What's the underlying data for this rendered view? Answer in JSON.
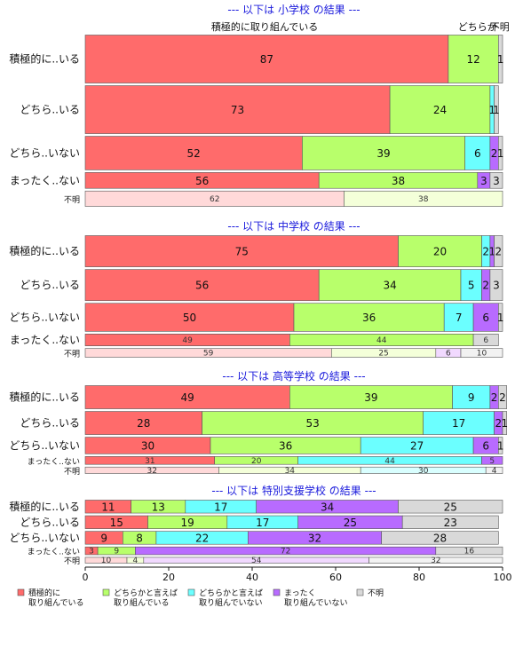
{
  "chart_data": {
    "type": "bar",
    "orientation": "horizontal",
    "stacked": true,
    "xlim": [
      0,
      100
    ],
    "x_ticks": [
      0,
      20,
      40,
      60,
      80,
      100
    ],
    "legend_position": "bottom",
    "legend": [
      {
        "name": "積極的に\n取り組んでいる",
        "color": "#ff6b6b"
      },
      {
        "name": "どちらかと言えば\n取り組んでいる",
        "color": "#b8ff6b"
      },
      {
        "name": "どちらかと言えば\n取り組んでいない",
        "color": "#6bffff"
      },
      {
        "name": "まったく\n取り組んでいない",
        "color": "#b86bff"
      },
      {
        "name": "不明",
        "color": "#d9d9d9"
      }
    ],
    "top_annotations": [
      {
        "text": "積極的に取り組んでいる",
        "x": 43
      },
      {
        "text": "どちらか",
        "x": 94
      },
      {
        "text": "不明",
        "x": 99.3
      }
    ],
    "panels": [
      {
        "title": "--- 以下は 小学校 の結果 ---",
        "rows": [
          {
            "label": "積極的に..いる",
            "values": [
              87,
              12,
              0,
              0,
              1
            ],
            "labels": [
              "87",
              "12",
              "",
              "",
              "1"
            ],
            "weight": 1.0
          },
          {
            "label": "どちら..いる",
            "values": [
              73,
              24,
              1,
              0,
              1
            ],
            "labels": [
              "73",
              "24",
              "1",
              "",
              "1"
            ],
            "weight": 1.0
          },
          {
            "label": "どちら..いない",
            "values": [
              52,
              39,
              6,
              2,
              1
            ],
            "labels": [
              "52",
              "39",
              "6",
              "2",
              "1"
            ],
            "weight": 0.7
          },
          {
            "label": "まったく..ない",
            "values": [
              56,
              38,
              0,
              3,
              3
            ],
            "labels": [
              "56",
              "38",
              "",
              "3",
              "3"
            ],
            "weight": 0.33
          },
          {
            "label": "不明",
            "values": [
              62,
              38,
              0,
              0,
              0
            ],
            "labels": [
              "62",
              "38",
              "",
              "",
              ""
            ],
            "weight": 0.32,
            "faded": true
          }
        ]
      },
      {
        "title": "--- 以下は 中学校 の結果 ---",
        "rows": [
          {
            "label": "積極的に..いる",
            "values": [
              75,
              20,
              2,
              1,
              2
            ],
            "labels": [
              "75",
              "20",
              "2",
              "1",
              "2"
            ],
            "weight": 1.0
          },
          {
            "label": "どちら..いる",
            "values": [
              56,
              34,
              5,
              2,
              3
            ],
            "labels": [
              "56",
              "34",
              "5",
              "2",
              "3"
            ],
            "weight": 1.0
          },
          {
            "label": "どちら..いない",
            "values": [
              50,
              36,
              7,
              6,
              1
            ],
            "labels": [
              "50",
              "36",
              "7",
              "6",
              "1"
            ],
            "weight": 0.9
          },
          {
            "label": "まったく..ない",
            "values": [
              49,
              44,
              0,
              0,
              6
            ],
            "labels": [
              "49",
              "44",
              "",
              "",
              "6"
            ],
            "weight": 0.38
          },
          {
            "label": "不明",
            "values": [
              59,
              25,
              0,
              6,
              10
            ],
            "labels": [
              "59",
              "25",
              "",
              "6",
              "10"
            ],
            "weight": 0.28,
            "faded": true
          }
        ]
      },
      {
        "title": "--- 以下は 高等学校 の結果 ---",
        "rows": [
          {
            "label": "積極的に..いる",
            "values": [
              49,
              39,
              9,
              2,
              2
            ],
            "labels": [
              "49",
              "39",
              "9",
              "2",
              "2"
            ],
            "weight": 1.0
          },
          {
            "label": "どちら..いる",
            "values": [
              28,
              53,
              17,
              2,
              1
            ],
            "labels": [
              "28",
              "53",
              "17",
              "2",
              "1"
            ],
            "weight": 1.0
          },
          {
            "label": "どちら..いない",
            "values": [
              30,
              36,
              27,
              6,
              1
            ],
            "labels": [
              "30",
              "36",
              "27",
              "6",
              "1"
            ],
            "weight": 0.72
          },
          {
            "label": "まったく..ない",
            "values": [
              31,
              20,
              44,
              5,
              0
            ],
            "labels": [
              "31",
              "20",
              "44",
              "5",
              ""
            ],
            "weight": 0.34,
            "small": true
          },
          {
            "label": "不明",
            "values": [
              32,
              34,
              30,
              0,
              4
            ],
            "labels": [
              "32",
              "34",
              "30",
              "",
              "4"
            ],
            "weight": 0.28,
            "faded": true
          }
        ]
      },
      {
        "title": "--- 以下は 特別支援学校 の結果 ---",
        "rows": [
          {
            "label": "積極的に..いる",
            "values": [
              11,
              13,
              17,
              34,
              25
            ],
            "labels": [
              "11",
              "13",
              "17",
              "34",
              "25"
            ],
            "weight": 1.0
          },
          {
            "label": "どちら..いる",
            "values": [
              15,
              19,
              17,
              25,
              23
            ],
            "labels": [
              "15",
              "19",
              "17",
              "25",
              "23"
            ],
            "weight": 1.0
          },
          {
            "label": "どちら..いない",
            "values": [
              9,
              8,
              22,
              32,
              28
            ],
            "labels": [
              "9",
              "8",
              "22",
              "32",
              "28"
            ],
            "weight": 1.0
          },
          {
            "label": "まったく..ない",
            "values": [
              3,
              9,
              0,
              72,
              16
            ],
            "labels": [
              "3",
              "9",
              "",
              "72",
              "16"
            ],
            "weight": 0.6,
            "small": true
          },
          {
            "label": "不明",
            "values": [
              10,
              4,
              0,
              54,
              32
            ],
            "labels": [
              "10",
              "4",
              "",
              "54",
              "32"
            ],
            "weight": 0.45,
            "small": true,
            "faded": true
          }
        ]
      }
    ]
  }
}
